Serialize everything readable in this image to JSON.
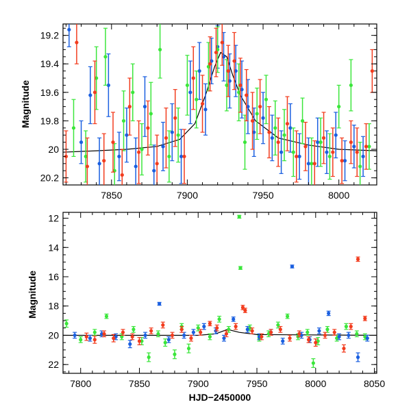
{
  "colors": {
    "blue": "#1a5fe0",
    "green": "#3be63b",
    "red": "#f23c1e",
    "model": "#000000",
    "frame": "#000000"
  },
  "chart_data": [
    {
      "type": "scatter",
      "panel": "top",
      "title": "",
      "xlabel": "",
      "ylabel": "Magnitude",
      "xlim": [
        7818,
        8025
      ],
      "ylim": [
        20.25,
        19.12
      ],
      "y_inverted": true,
      "grid": false,
      "error_bars": true,
      "x_ticks": [
        7850,
        7900,
        7950,
        8000
      ],
      "y_ticks": [
        19.2,
        19.4,
        19.6,
        19.8,
        20,
        20.2
      ],
      "y_tick_labels": [
        "19.2",
        "19.4",
        "19.6",
        "19.8",
        "20",
        "20.2"
      ],
      "model_curve": {
        "color": "model",
        "x": [
          7818,
          7840,
          7860,
          7880,
          7895,
          7905,
          7912,
          7918,
          7922,
          7926,
          7930,
          7935,
          7945,
          7960,
          7980,
          8000,
          8025
        ],
        "y": [
          20.02,
          20.01,
          20.0,
          19.98,
          19.93,
          19.82,
          19.62,
          19.42,
          19.32,
          19.35,
          19.48,
          19.62,
          19.8,
          19.92,
          19.97,
          20.0,
          20.01
        ]
      },
      "series": [
        {
          "color": "blue",
          "x": [
            7822,
            7830,
            7836,
            7842,
            7848,
            7855,
            7860,
            7866,
            7872,
            7878,
            7884,
            7890,
            7896,
            7902,
            7908,
            7912,
            7916,
            7920,
            7924,
            7928,
            7932,
            7936,
            7940,
            7944,
            7950,
            7956,
            7962,
            7968,
            7974,
            7980,
            7986,
            7992,
            7998,
            8004,
            8010,
            8016
          ],
          "y": [
            19.16,
            19.95,
            19.62,
            20.1,
            19.55,
            20.05,
            19.9,
            20.12,
            19.7,
            20.15,
            19.98,
            19.88,
            20.05,
            19.6,
            19.45,
            19.72,
            19.38,
            19.28,
            19.35,
            19.52,
            19.45,
            19.58,
            19.7,
            19.88,
            19.78,
            19.92,
            20.02,
            19.85,
            20.05,
            20.1,
            19.95,
            20.02,
            19.9,
            20.08,
            19.98,
            20.05
          ],
          "yerr": [
            0.12,
            0.15,
            0.2,
            0.18,
            0.22,
            0.17,
            0.19,
            0.2,
            0.21,
            0.18,
            0.17,
            0.2,
            0.19,
            0.22,
            0.2,
            0.18,
            0.16,
            0.15,
            0.17,
            0.19,
            0.18,
            0.2,
            0.19,
            0.17,
            0.18,
            0.16,
            0.15,
            0.17,
            0.16,
            0.18,
            0.17,
            0.15,
            0.16,
            0.14,
            0.15,
            0.14
          ]
        },
        {
          "color": "green",
          "x": [
            7825,
            7833,
            7840,
            7846,
            7852,
            7858,
            7864,
            7870,
            7876,
            7882,
            7888,
            7894,
            7900,
            7906,
            7914,
            7920,
            7926,
            7934,
            7938,
            7946,
            7952,
            7958,
            7964,
            7970,
            7976,
            7982,
            7988,
            7994,
            8000,
            8008,
            8014,
            8020
          ],
          "y": [
            19.85,
            20.05,
            19.5,
            19.35,
            20.15,
            19.8,
            19.6,
            20.0,
            19.75,
            19.3,
            20.05,
            19.9,
            19.55,
            19.65,
            19.42,
            19.3,
            19.55,
            19.6,
            19.95,
            19.75,
            19.65,
            19.85,
            19.9,
            20.02,
            19.8,
            20.1,
            19.95,
            20.05,
            19.7,
            19.55,
            20.12,
            19.98
          ],
          "yerr": [
            0.2,
            0.18,
            0.22,
            0.2,
            0.19,
            0.21,
            0.2,
            0.18,
            0.22,
            0.2,
            0.18,
            0.19,
            0.21,
            0.2,
            0.17,
            0.16,
            0.18,
            0.2,
            0.19,
            0.18,
            0.17,
            0.19,
            0.18,
            0.17,
            0.16,
            0.18,
            0.17,
            0.16,
            0.15,
            0.18,
            0.17,
            0.16
          ]
        },
        {
          "color": "red",
          "x": [
            7820,
            7827,
            7834,
            7839,
            7845,
            7851,
            7857,
            7862,
            7868,
            7874,
            7880,
            7886,
            7892,
            7898,
            7904,
            7910,
            7915,
            7919,
            7923,
            7927,
            7931,
            7935,
            7939,
            7943,
            7948,
            7954,
            7960,
            7966,
            7972,
            7978,
            7984,
            7990,
            7996,
            8002,
            8008,
            8012,
            8018,
            8022
          ],
          "y": [
            20.05,
            19.25,
            20.12,
            19.6,
            20.08,
            19.95,
            20.18,
            19.7,
            20.02,
            19.85,
            20.1,
            19.92,
            19.78,
            20.05,
            19.5,
            19.68,
            19.4,
            19.32,
            19.25,
            19.45,
            19.38,
            19.55,
            19.62,
            19.8,
            19.7,
            19.88,
            19.95,
            19.82,
            20.05,
            19.98,
            20.1,
            19.92,
            20.02,
            20.08,
            19.95,
            20.02,
            19.98,
            19.45
          ],
          "yerr": [
            0.18,
            0.15,
            0.2,
            0.22,
            0.19,
            0.21,
            0.18,
            0.2,
            0.22,
            0.19,
            0.2,
            0.21,
            0.2,
            0.19,
            0.22,
            0.2,
            0.19,
            0.17,
            0.16,
            0.18,
            0.2,
            0.19,
            0.18,
            0.2,
            0.19,
            0.18,
            0.17,
            0.19,
            0.18,
            0.17,
            0.16,
            0.18,
            0.17,
            0.16,
            0.15,
            0.17,
            0.16,
            0.15
          ]
        }
      ]
    },
    {
      "type": "scatter",
      "panel": "bottom",
      "title": "",
      "xlabel": "HJD−2450000",
      "ylabel": "Magnitude",
      "xlim": [
        7785,
        8052
      ],
      "ylim": [
        22.6,
        11.6
      ],
      "y_inverted": true,
      "grid": false,
      "error_bars": true,
      "x_ticks": [
        7800,
        7850,
        7900,
        7950,
        8000,
        8050
      ],
      "y_ticks": [
        12,
        14,
        16,
        18,
        20,
        22
      ],
      "y_tick_labels": [
        "12",
        "14",
        "16",
        "18",
        "20",
        "22"
      ],
      "model_curve": {
        "color": "model",
        "x": [
          7785,
          7900,
          7915,
          7925,
          7935,
          7950,
          8052
        ],
        "y": [
          20.0,
          20.0,
          19.9,
          19.6,
          19.8,
          19.95,
          20.0
        ]
      },
      "series": [
        {
          "color": "green",
          "x": [
            7788,
            7800,
            7812,
            7822,
            7835,
            7845,
            7852,
            7858,
            7866,
            7872,
            7880,
            7886,
            7892,
            7900,
            7910,
            7918,
            7926,
            7935,
            7936,
            7944,
            7952,
            7960,
            7968,
            7976,
            7985,
            7993,
            7998,
            8002,
            8010,
            8018,
            8026,
            8035,
            8042
          ],
          "y": [
            19.2,
            20.3,
            19.8,
            18.7,
            20.1,
            19.6,
            20.4,
            21.5,
            19.9,
            20.5,
            21.3,
            19.4,
            20.9,
            19.5,
            20.1,
            18.9,
            19.6,
            11.9,
            15.4,
            19.5,
            20.2,
            19.9,
            19.3,
            18.7,
            20.1,
            19.8,
            21.9,
            20.4,
            19.6,
            20.2,
            19.4,
            19.9,
            20.1
          ],
          "yerr": [
            0.25,
            0.2,
            0.2,
            0.15,
            0.2,
            0.2,
            0.25,
            0.3,
            0.2,
            0.25,
            0.3,
            0.2,
            0.3,
            0.2,
            0.2,
            0.2,
            0.2,
            0.1,
            0.1,
            0.2,
            0.2,
            0.2,
            0.2,
            0.15,
            0.2,
            0.2,
            0.3,
            0.25,
            0.2,
            0.2,
            0.2,
            0.2,
            0.2
          ]
        },
        {
          "color": "blue",
          "x": [
            7795,
            7808,
            7818,
            7830,
            7842,
            7855,
            7867,
            7875,
            7888,
            7896,
            7905,
            7915,
            7922,
            7930,
            7942,
            7952,
            7962,
            7972,
            7980,
            7988,
            7995,
            8003,
            8011,
            8020,
            8028,
            8036,
            8044
          ],
          "y": [
            20.0,
            20.2,
            19.9,
            20.1,
            20.6,
            20.0,
            17.85,
            20.3,
            20.0,
            19.8,
            19.4,
            19.7,
            20.2,
            18.9,
            19.6,
            20.1,
            19.8,
            20.4,
            15.3,
            20.0,
            20.3,
            19.7,
            18.5,
            20.1,
            20.0,
            21.5,
            20.2
          ],
          "yerr": [
            0.2,
            0.2,
            0.2,
            0.2,
            0.25,
            0.2,
            0.1,
            0.2,
            0.2,
            0.2,
            0.2,
            0.2,
            0.2,
            0.15,
            0.2,
            0.2,
            0.2,
            0.2,
            0.1,
            0.2,
            0.2,
            0.2,
            0.15,
            0.2,
            0.2,
            0.3,
            0.2
          ]
        },
        {
          "color": "red",
          "x": [
            7805,
            7812,
            7820,
            7828,
            7836,
            7844,
            7850,
            7860,
            7870,
            7878,
            7886,
            7894,
            7902,
            7910,
            7916,
            7924,
            7932,
            7938,
            7940,
            7946,
            7954,
            7962,
            7970,
            7978,
            7986,
            7994,
            8000,
            8008,
            8016,
            8024,
            8030,
            8036,
            8042
          ],
          "y": [
            20.1,
            20.3,
            19.9,
            20.2,
            19.8,
            20.1,
            20.4,
            19.7,
            19.3,
            20.0,
            19.6,
            20.2,
            19.8,
            19.2,
            19.5,
            19.9,
            19.4,
            18.1,
            18.3,
            19.7,
            20.1,
            19.8,
            19.6,
            20.2,
            19.9,
            20.3,
            20.5,
            20.0,
            19.8,
            20.9,
            19.4,
            14.8,
            18.85
          ],
          "yerr": [
            0.25,
            0.25,
            0.2,
            0.25,
            0.2,
            0.2,
            0.25,
            0.2,
            0.2,
            0.2,
            0.2,
            0.2,
            0.2,
            0.15,
            0.2,
            0.2,
            0.2,
            0.15,
            0.15,
            0.2,
            0.2,
            0.2,
            0.2,
            0.2,
            0.2,
            0.2,
            0.25,
            0.2,
            0.2,
            0.25,
            0.2,
            0.15,
            0.15
          ]
        }
      ]
    }
  ]
}
